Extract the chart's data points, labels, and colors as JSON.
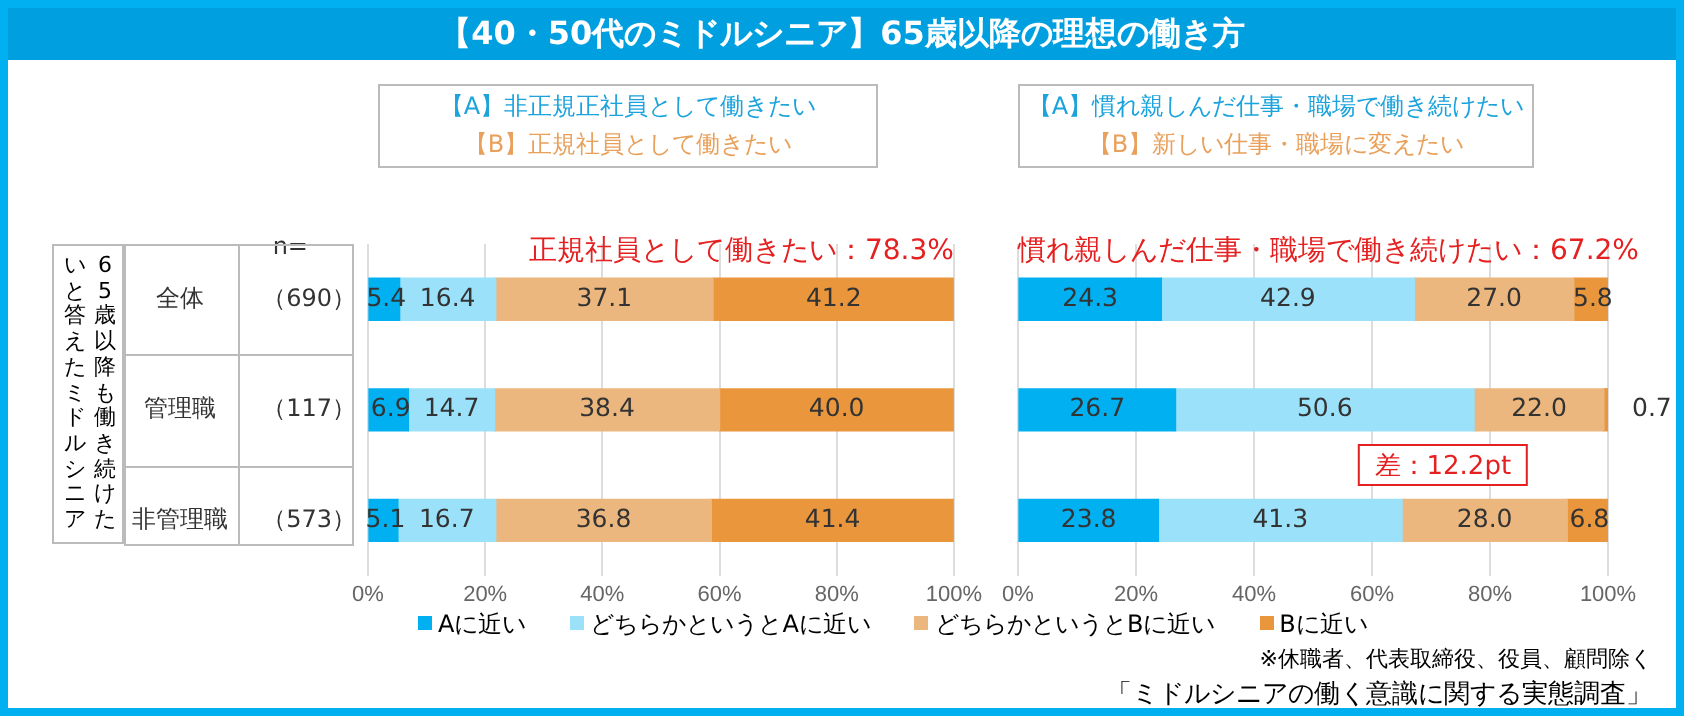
{
  "chart_data": [
    {
      "type": "bar",
      "orientation": "horizontal",
      "stacked": true,
      "title": "【40・50代のミドルシニア】65歳以降の理想の働き方",
      "ylabel": "65歳以降も働き続けたいと答えたミドルシニア",
      "categories": [
        "全体",
        "管理職",
        "非管理職"
      ],
      "series": [
        {
          "name": "Aに近い",
          "color": "#00b0f0",
          "values": [
            5.4,
            6.9,
            5.1
          ],
          "value_labels": [
            "5.4",
            "6.9",
            "5.1"
          ]
        },
        {
          "name": "どちらかというとAに近い",
          "color": "#9be1fa",
          "values": [
            16.4,
            14.7,
            16.7
          ],
          "value_labels": [
            "16.4",
            "14.7",
            "16.7"
          ]
        },
        {
          "name": "どちらかというとBに近い",
          "color": "#ebb77e",
          "values": [
            37.1,
            38.4,
            36.8
          ],
          "value_labels": [
            "37.1",
            "38.4",
            "36.8"
          ]
        },
        {
          "name": "Bに近い",
          "color": "#e9963c",
          "values": [
            41.2,
            40.0,
            41.4
          ],
          "value_labels": [
            "41.2",
            "40.0",
            "41.4"
          ]
        }
      ],
      "xlim": [
        0,
        100
      ],
      "xticks": [
        {
          "value": 0,
          "label": "0%"
        },
        {
          "value": 20,
          "label": "20%"
        },
        {
          "value": 40,
          "label": "40%"
        },
        {
          "value": 60,
          "label": "60%"
        },
        {
          "value": 80,
          "label": "80%"
        },
        {
          "value": 100,
          "label": "100%"
        }
      ],
      "grid": "x",
      "legend": "bottom",
      "annotations": [
        "【A】非正規正社員として働きたい",
        "【B】正規社員として働きたい",
        "正規社員として働きたい：78.3%",
        "n=",
        "（690）",
        "（117）",
        "（573）"
      ]
    },
    {
      "type": "bar",
      "orientation": "horizontal",
      "stacked": true,
      "categories": [
        null,
        null,
        null
      ],
      "series": [
        {
          "color": "#00b0f0",
          "values": [
            24.3,
            26.7,
            23.8
          ],
          "value_labels": [
            "24.3",
            "26.7",
            "23.8"
          ]
        },
        {
          "color": "#9be1fa",
          "values": [
            42.9,
            50.6,
            41.3
          ],
          "value_labels": [
            "42.9",
            "50.6",
            "41.3"
          ]
        },
        {
          "color": "#ebb77e",
          "values": [
            27.0,
            22.0,
            28.0
          ],
          "value_labels": [
            "27.0",
            "22.0",
            "28.0"
          ]
        },
        {
          "color": "#e9963c",
          "values": [
            5.8,
            0.7,
            6.8
          ],
          "value_labels": [
            "5.8",
            "0.7",
            "6.8"
          ]
        }
      ],
      "xlim": [
        0,
        100
      ],
      "xticks": [
        {
          "value": 0,
          "label": "0%"
        },
        {
          "value": 20,
          "label": "20%"
        },
        {
          "value": 40,
          "label": "40%"
        },
        {
          "value": 60,
          "label": "60%"
        },
        {
          "value": 80,
          "label": "80%"
        },
        {
          "value": 100,
          "label": "100%"
        }
      ],
      "grid": "x",
      "tick_labels": "x",
      "annotations": [
        "【A】慣れ親しんだ仕事・職場で働き続けたい",
        "【B】新しい仕事・職場に変えたい",
        "慣れ親しんだ仕事・職場で働き続けたい：67.2%",
        "差：12.2pt",
        "※休職者、代表取締役、役員、顧問除く",
        "「ミドルシニアの働く意識に関する実態調査」"
      ]
    }
  ]
}
